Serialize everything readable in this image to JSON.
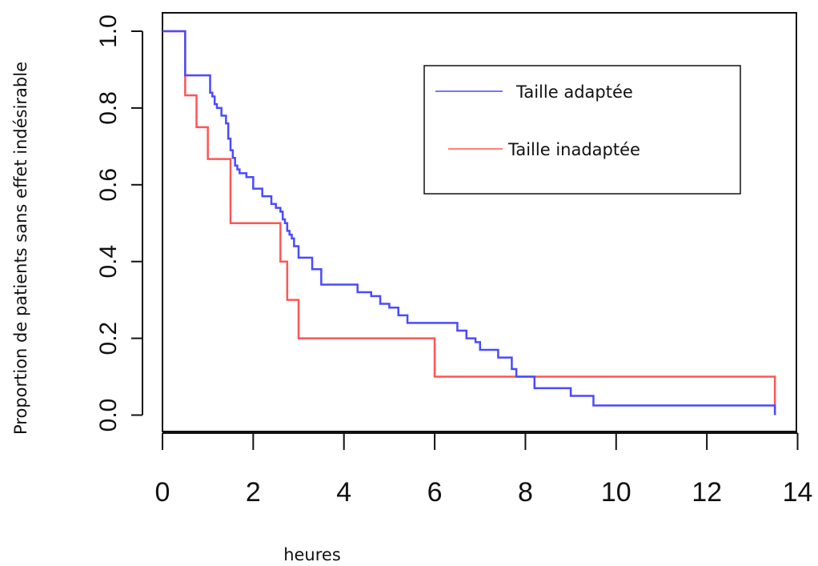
{
  "chart_data": {
    "type": "line",
    "xlabel": "heures",
    "ylabel": "Proportion de patients sans effet indésirable",
    "xlim": [
      0,
      14
    ],
    "ylim": [
      0,
      1
    ],
    "x_ticks": [
      "0",
      "2",
      "4",
      "6",
      "8",
      "10",
      "12",
      "14"
    ],
    "y_ticks": [
      "0.0",
      "0.2",
      "0.4",
      "0.6",
      "0.8",
      "1.0"
    ],
    "grid": false,
    "legend_position": "top-right",
    "series": [
      {
        "name": "Taille adaptée",
        "color": "#4a4aff",
        "step": true,
        "x": [
          0,
          0.5,
          0.5,
          1.0,
          1.05,
          1.1,
          1.15,
          1.2,
          1.3,
          1.4,
          1.45,
          1.5,
          1.55,
          1.6,
          1.65,
          1.7,
          1.85,
          2.0,
          2.2,
          2.4,
          2.5,
          2.6,
          2.65,
          2.7,
          2.75,
          2.8,
          2.85,
          2.9,
          3.0,
          3.3,
          3.5,
          4.3,
          4.6,
          4.8,
          5.0,
          5.2,
          5.4,
          5.6,
          6.5,
          6.7,
          6.9,
          7.0,
          7.4,
          7.7,
          7.8,
          8.2,
          8.6,
          9.0,
          9.5,
          13.5,
          13.5
        ],
        "y": [
          1.0,
          1.0,
          0.885,
          0.885,
          0.84,
          0.83,
          0.81,
          0.8,
          0.78,
          0.76,
          0.72,
          0.69,
          0.67,
          0.65,
          0.64,
          0.63,
          0.62,
          0.59,
          0.57,
          0.55,
          0.54,
          0.53,
          0.51,
          0.5,
          0.48,
          0.47,
          0.46,
          0.44,
          0.41,
          0.38,
          0.34,
          0.32,
          0.31,
          0.29,
          0.28,
          0.26,
          0.24,
          0.24,
          0.22,
          0.2,
          0.19,
          0.17,
          0.15,
          0.12,
          0.1,
          0.07,
          0.07,
          0.05,
          0.025,
          0.025,
          0.0
        ]
      },
      {
        "name": "Taille inadaptée",
        "color": "#ff5555",
        "step": true,
        "x": [
          0,
          0.5,
          0.5,
          0.75,
          1.0,
          1.5,
          1.5,
          2.6,
          2.6,
          2.75,
          3.0,
          6.0,
          6.0,
          13.5,
          13.5
        ],
        "y": [
          1.0,
          1.0,
          0.833,
          0.75,
          0.667,
          0.667,
          0.5,
          0.5,
          0.4,
          0.3,
          0.2,
          0.2,
          0.1,
          0.1,
          0.0
        ]
      }
    ]
  }
}
